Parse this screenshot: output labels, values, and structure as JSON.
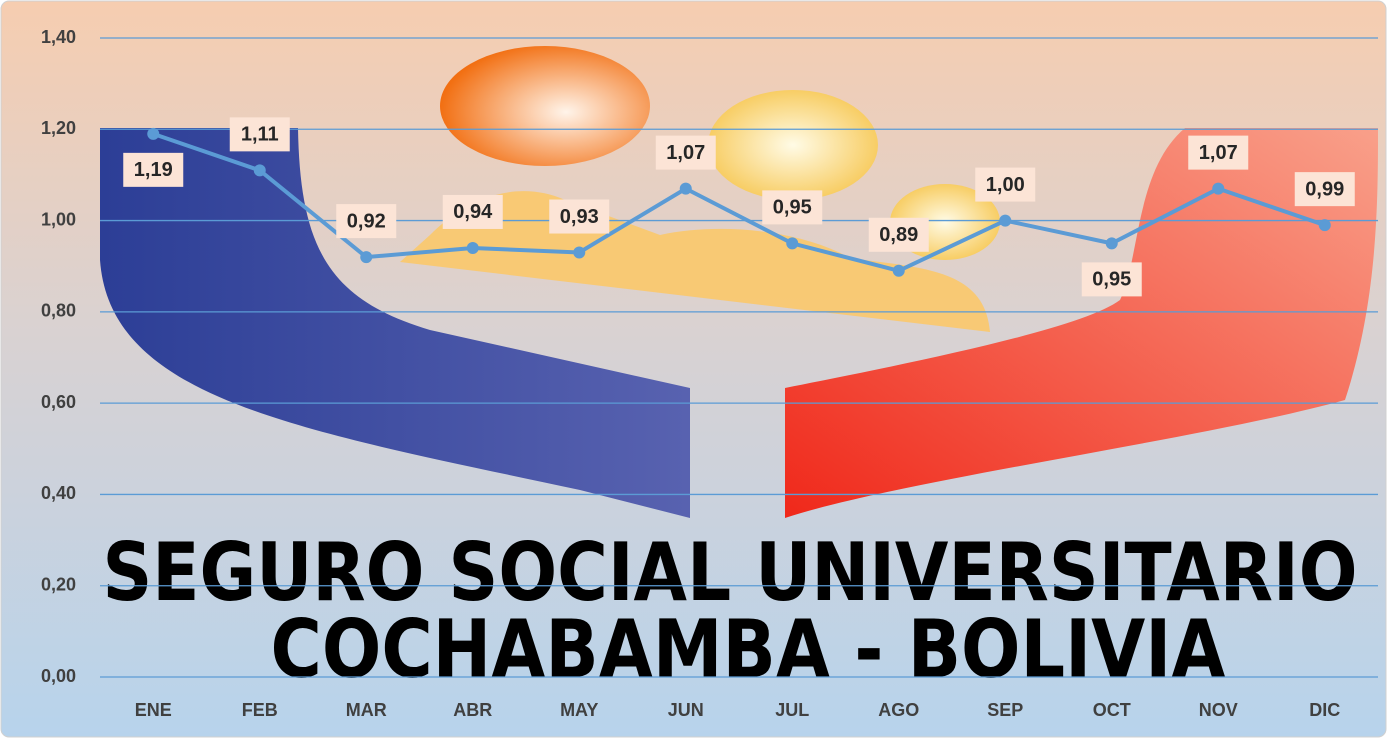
{
  "chart_data": {
    "type": "line",
    "categories": [
      "ENE",
      "FEB",
      "MAR",
      "ABR",
      "MAY",
      "JUN",
      "JUL",
      "AGO",
      "SEP",
      "OCT",
      "NOV",
      "DIC"
    ],
    "series": [
      {
        "color": "#5b9bd5",
        "values": [
          1.19,
          1.11,
          0.92,
          0.94,
          0.93,
          1.07,
          0.95,
          0.89,
          1.0,
          0.95,
          1.07,
          0.99
        ],
        "value_labels": [
          "1,19",
          "1,11",
          "0,92",
          "0,94",
          "0,93",
          "1,07",
          "0,95",
          "0,89",
          "1,00",
          "0,95",
          "1,07",
          "0,99"
        ]
      }
    ],
    "ylim": [
      0,
      1.4
    ],
    "yticks": [
      {
        "value": 0,
        "label": "0,00"
      },
      {
        "value": 0.2,
        "label": "0,20"
      },
      {
        "value": 0.4,
        "label": "0,40"
      },
      {
        "value": 0.6,
        "label": "0,60"
      },
      {
        "value": 0.8,
        "label": "0,80"
      },
      {
        "value": 1.0,
        "label": "1,00"
      },
      {
        "value": 1.2,
        "label": "1,20"
      },
      {
        "value": 1.4,
        "label": "1,40"
      }
    ],
    "grid": true,
    "annotations": [
      "SEGURO SOCIAL UNIVERSITARIO",
      "COCHABAMBA - BOLIVIA"
    ]
  }
}
